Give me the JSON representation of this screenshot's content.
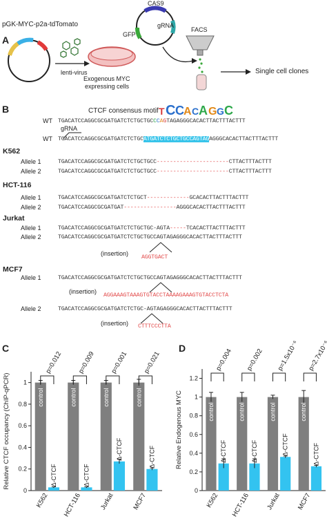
{
  "panelA": {
    "label": "A",
    "plasmid_label": "pGK-MYC-p2a-tdTomato",
    "virus_label": "lenti-virus",
    "dish_label_1": "Exogenous MYC",
    "dish_label_2": "expressing cells",
    "cas9_label": "CAS9",
    "grna_label": "gRNA",
    "gfp_label": "GFP",
    "facs_label": "FACS",
    "clones_label": "Single cell clones"
  },
  "panelB": {
    "label": "B",
    "motif_title": "CTCF consensus motif",
    "grna_label": "gRNA",
    "wt_label": "WT",
    "wt1": {
      "pre": "TGACATCCAGGCGCGATGATCTCTGCTGC",
      "g": "C",
      "b": "C",
      "o": "A",
      "r": "G",
      "rest": "TAGAGGGCACACTTACTTTACTTT"
    },
    "wt2": {
      "pre": "TGACATCCAGGCGCGATGATCTCTGC",
      "hl": "ATGATCTCTGCTGCCAGTAG",
      "post": "AGGGCACACTTACTTTACTTT"
    },
    "samples": [
      {
        "name": "K562",
        "alleles": [
          {
            "label": "Allele 1",
            "pre": "TGACATCCAGGCGCGATGATCTCTGCTGCC",
            "del": "----------------------",
            "post": "CTTACTTTACTTT"
          },
          {
            "label": "Allele 2",
            "pre": "TGACATCCAGGCGCGATGATCTCTGCTGCC",
            "del": "----------------------",
            "post": "CTTACTTTACTTT"
          }
        ]
      },
      {
        "name": "HCT-116",
        "alleles": [
          {
            "label": "Allele 1",
            "pre": "TGACATCCAGGCGCGATGATCTCTGCT",
            "del": "-------------",
            "post": "GCACACTTACTTTACTTT"
          },
          {
            "label": "Allele 2",
            "pre": "TGACATCCAGGCGCGATGAT",
            "del": "----------------",
            "post": "AGGGCACACTTACTTTACTTT"
          }
        ]
      },
      {
        "name": "Jurkat",
        "alleles": [
          {
            "label": "Allele 1",
            "pre": "TGACATCCAGGCGCGATGATCTCTGCTGC-AGTA",
            "del": "-----",
            "post": "TCACACTTACTTTACTTT"
          },
          {
            "label": "Allele 2",
            "pre": "TGACATCCAGGCGCGATGATCTCTGCTGCCAGTAGAGGGCACACTTACTTTACTTT",
            "del": "",
            "post": ""
          }
        ]
      },
      {
        "name": "MCF7",
        "alleles": [
          {
            "label": "Allele 1",
            "pre": "TGACATCCAGGCGCGATGATCTCTGCTGCCAGTAGAGGGCACACTTACTTTACTTT",
            "del": "",
            "post": ""
          },
          {
            "label": "Allele 2",
            "pre": "TGACATCCAGGCGCGATGATCTCTGC-AGTAGAGGGCACACTTACTTTACTTT",
            "del": "",
            "post": ""
          }
        ]
      }
    ],
    "insertion_label": "(insertion)",
    "jurkat_insert": "AGGTGACT",
    "mcf7_insert1": "AGGAAAGTAAAGTGTACCTAAAAGAAAGTGTACCTCTA",
    "mcf7_insert2": "CTTTCCCTTA"
  },
  "colors": {
    "gray": "#7f7f7f",
    "blue": "#33c3f0",
    "red": "#e24a4a"
  },
  "chart_data": [
    {
      "type": "bar",
      "panel": "C",
      "ylabel": "Relative CTCF occupancy (ChIP-qPCR)",
      "ylim": [
        0,
        1.1
      ],
      "yticks": [
        "0",
        "0.2",
        "0.4",
        "0.6",
        "0.8",
        "1"
      ],
      "categories": [
        "K562",
        "HCT-116",
        "Jurkat",
        "MCF7"
      ],
      "series": [
        {
          "name": "control",
          "values": [
            1.0,
            1.0,
            1.0,
            1.0
          ],
          "errors": [
            0.02,
            0.02,
            0.02,
            0.03
          ]
        },
        {
          "name": "Δ-CTCF",
          "values": [
            0.03,
            0.03,
            0.27,
            0.2
          ],
          "errors": [
            0.005,
            0.005,
            0.02,
            0.01
          ]
        }
      ],
      "pvalues": [
        "p=0.012",
        "p=0.009",
        "p=0.001",
        "p=0.021"
      ]
    },
    {
      "type": "bar",
      "panel": "D",
      "ylabel": "Relative Endogenous MYC",
      "ylim": [
        0,
        1.3
      ],
      "yticks": [
        "0",
        "0.2",
        "0.4",
        "0.6",
        "0.8",
        "1",
        "1.2"
      ],
      "categories": [
        "K562",
        "HCT-116",
        "Jurkat",
        "MCF7"
      ],
      "series": [
        {
          "name": "control",
          "values": [
            1.0,
            1.0,
            1.0,
            1.0
          ],
          "errors": [
            0.05,
            0.05,
            0.02,
            0.07
          ]
        },
        {
          "name": "Δ-CTCF",
          "values": [
            0.29,
            0.29,
            0.36,
            0.26
          ],
          "errors": [
            0.05,
            0.05,
            0.01,
            0.01
          ]
        }
      ],
      "pvalues": [
        "p=0.004",
        "p=0.002",
        "p=1.5x10⁻⁶",
        "p=2.7x10⁻⁶"
      ]
    }
  ]
}
